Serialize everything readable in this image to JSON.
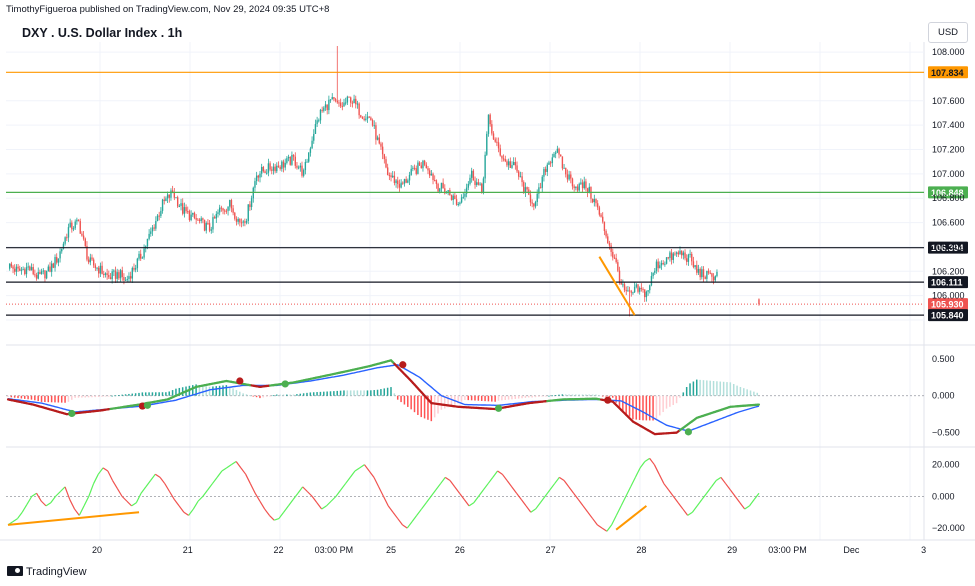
{
  "header": {
    "attribution": "TimothyFigueroa published on TradingView.com, Nov 29, 2024 09:35 UTC+8",
    "symbol_title": "DXY . U.S. Dollar Index . 1h",
    "currency": "USD",
    "footer": "TradingView"
  },
  "colors": {
    "up": "#26a69a",
    "down": "#ef5350",
    "orange": "#ff9800",
    "green_line": "#4caf50",
    "black_line": "#131722",
    "macd_blue": "#2962ff",
    "macd_green": "#4caf50",
    "macd_red": "#b71c1c",
    "rsi_green": "#5cf25c",
    "rsi_red": "#f0524f"
  },
  "chart_data": [
    {
      "type": "candlestick",
      "name": "price",
      "ylim": [
        105.8,
        108.05
      ],
      "y_ticks": [
        105.8,
        106.0,
        106.2,
        106.4,
        106.6,
        106.8,
        107.0,
        107.2,
        107.4,
        107.6,
        108.0
      ],
      "y_tick_labels": [
        "",
        "106.000",
        "106.200",
        "106.400",
        "106.600",
        "106.800",
        "107.000",
        "107.200",
        "107.400",
        "107.600",
        "108.000"
      ],
      "anchors": [
        [
          0,
          106.25
        ],
        [
          6,
          106.2
        ],
        [
          12,
          106.23
        ],
        [
          18,
          106.15
        ],
        [
          24,
          106.2
        ],
        [
          30,
          106.32
        ],
        [
          36,
          106.55
        ],
        [
          42,
          106.6
        ],
        [
          48,
          106.28
        ],
        [
          54,
          106.22
        ],
        [
          60,
          106.15
        ],
        [
          66,
          106.18
        ],
        [
          70,
          106.12
        ],
        [
          76,
          106.25
        ],
        [
          80,
          106.35
        ],
        [
          86,
          106.55
        ],
        [
          92,
          106.75
        ],
        [
          98,
          106.85
        ],
        [
          104,
          106.7
        ],
        [
          112,
          106.62
        ],
        [
          120,
          106.55
        ],
        [
          126,
          106.7
        ],
        [
          132,
          106.75
        ],
        [
          138,
          106.6
        ],
        [
          142,
          106.65
        ],
        [
          148,
          107.0
        ],
        [
          156,
          107.05
        ],
        [
          164,
          107.08
        ],
        [
          170,
          107.12
        ],
        [
          176,
          107.0
        ],
        [
          182,
          107.35
        ],
        [
          186,
          107.5
        ],
        [
          192,
          107.6
        ],
        [
          198,
          107.55
        ],
        [
          204,
          107.62
        ],
        [
          210,
          107.5
        ],
        [
          216,
          107.45
        ],
        [
          226,
          107.0
        ],
        [
          234,
          106.9
        ],
        [
          240,
          107.0
        ],
        [
          248,
          107.1
        ],
        [
          256,
          106.9
        ],
        [
          262,
          106.85
        ],
        [
          268,
          106.75
        ],
        [
          276,
          107.0
        ],
        [
          282,
          106.85
        ],
        [
          286,
          107.45
        ],
        [
          290,
          107.25
        ],
        [
          296,
          107.1
        ],
        [
          302,
          107.05
        ],
        [
          308,
          106.85
        ],
        [
          314,
          106.75
        ],
        [
          320,
          107.05
        ],
        [
          326,
          107.2
        ],
        [
          332,
          107.0
        ],
        [
          338,
          106.9
        ],
        [
          344,
          106.9
        ],
        [
          350,
          106.75
        ],
        [
          356,
          106.5
        ],
        [
          362,
          106.25
        ],
        [
          366,
          106.05
        ],
        [
          370,
          106.0
        ],
        [
          374,
          106.05
        ],
        [
          380,
          106.02
        ],
        [
          386,
          106.25
        ],
        [
          392,
          106.3
        ],
        [
          400,
          106.35
        ],
        [
          406,
          106.3
        ],
        [
          410,
          106.2
        ],
        [
          418,
          106.15
        ],
        [
          422,
          106.18
        ]
      ],
      "gap_after_index": 423,
      "tail": [
        [
          442,
          106.04
        ],
        [
          444,
          106.03
        ],
        [
          446,
          105.97
        ],
        [
          447,
          105.93
        ]
      ],
      "high_spike": [
        196,
        108.05
      ],
      "low_spike": [
        370,
        105.83
      ],
      "horizontal_levels": [
        {
          "value": 107.834,
          "label": "107.834",
          "color": "#ff9800",
          "label_bg": "#ff9800",
          "label_color": "#131722"
        },
        {
          "value": 106.848,
          "label": "106.848",
          "color": "#4caf50",
          "label_bg": "#4caf50",
          "label_color": "#ffffff"
        },
        {
          "value": 106.394,
          "label": "106.394",
          "color": "#131722",
          "label_bg": "#131722",
          "label_color": "#ffffff"
        },
        {
          "value": 106.111,
          "label": "106.111",
          "color": "#131722",
          "label_bg": "#131722",
          "label_color": "#ffffff"
        },
        {
          "value": 105.93,
          "label": "105.930",
          "color": "#ef5350",
          "label_bg": "#ef5350",
          "label_color": "#ffffff",
          "dotted": true
        },
        {
          "value": 105.84,
          "label": "105.840",
          "color": "#131722",
          "label_bg": "#131722",
          "label_color": "#ffffff"
        }
      ],
      "trendlines": [
        {
          "from": [
            352,
            106.32
          ],
          "to": [
            373,
            105.84
          ],
          "color": "#ff9800"
        }
      ]
    },
    {
      "type": "macd",
      "name": "macd",
      "ylim": [
        -0.6,
        0.62
      ],
      "y_ticks": [
        0.5,
        0.0,
        -0.5
      ],
      "y_tick_labels": [
        "0.500",
        "0.000",
        "−0.500"
      ],
      "macd_anchors": [
        [
          0,
          -0.05
        ],
        [
          15,
          -0.12
        ],
        [
          35,
          -0.25
        ],
        [
          55,
          -0.2
        ],
        [
          78,
          -0.12
        ],
        [
          95,
          -0.05
        ],
        [
          112,
          0.12
        ],
        [
          130,
          0.2
        ],
        [
          150,
          0.12
        ],
        [
          170,
          0.18
        ],
        [
          195,
          0.3
        ],
        [
          215,
          0.4
        ],
        [
          228,
          0.48
        ],
        [
          240,
          0.2
        ],
        [
          252,
          -0.1
        ],
        [
          268,
          -0.15
        ],
        [
          290,
          -0.18
        ],
        [
          310,
          -0.1
        ],
        [
          330,
          -0.05
        ],
        [
          350,
          -0.04
        ],
        [
          360,
          -0.08
        ],
        [
          372,
          -0.35
        ],
        [
          385,
          -0.52
        ],
        [
          398,
          -0.5
        ],
        [
          410,
          -0.3
        ],
        [
          430,
          -0.15
        ],
        [
          447,
          -0.12
        ]
      ],
      "signal_anchors": [
        [
          0,
          -0.04
        ],
        [
          20,
          -0.1
        ],
        [
          40,
          -0.22
        ],
        [
          60,
          -0.18
        ],
        [
          80,
          -0.14
        ],
        [
          100,
          -0.06
        ],
        [
          120,
          0.08
        ],
        [
          140,
          0.14
        ],
        [
          160,
          0.14
        ],
        [
          180,
          0.2
        ],
        [
          200,
          0.28
        ],
        [
          220,
          0.38
        ],
        [
          232,
          0.42
        ],
        [
          245,
          0.25
        ],
        [
          258,
          0.0
        ],
        [
          272,
          -0.12
        ],
        [
          292,
          -0.13
        ],
        [
          312,
          -0.08
        ],
        [
          332,
          -0.06
        ],
        [
          350,
          -0.05
        ],
        [
          365,
          -0.07
        ],
        [
          378,
          -0.22
        ],
        [
          392,
          -0.4
        ],
        [
          405,
          -0.48
        ],
        [
          420,
          -0.35
        ],
        [
          435,
          -0.22
        ],
        [
          447,
          -0.14
        ]
      ],
      "cross_dots": [
        [
          38,
          -0.24,
          "green"
        ],
        [
          80,
          -0.14,
          "red"
        ],
        [
          83,
          -0.13,
          "green"
        ],
        [
          138,
          0.2,
          "red"
        ],
        [
          165,
          0.16,
          "green"
        ],
        [
          235,
          0.42,
          "red"
        ],
        [
          292,
          -0.17,
          "green"
        ],
        [
          357,
          -0.06,
          "red"
        ],
        [
          405,
          -0.49,
          "green"
        ]
      ]
    },
    {
      "type": "oscillator",
      "name": "rsi-like",
      "ylim": [
        -25,
        28
      ],
      "y_ticks": [
        20,
        0,
        -20
      ],
      "y_tick_labels": [
        "20.000",
        "0.000",
        "−20.000"
      ],
      "values": [
        -18,
        -16,
        -14,
        -10,
        -5,
        0,
        2,
        -3,
        -6,
        -4,
        0,
        3,
        6,
        -2,
        -8,
        -12,
        -6,
        0,
        8,
        14,
        18,
        16,
        10,
        5,
        0,
        -3,
        -6,
        -4,
        2,
        6,
        10,
        14,
        12,
        8,
        3,
        -2,
        -6,
        -10,
        -12,
        -8,
        -3,
        0,
        4,
        8,
        12,
        16,
        18,
        20,
        22,
        18,
        14,
        8,
        2,
        -3,
        -8,
        -12,
        -15,
        -14,
        -10,
        -6,
        -2,
        2,
        6,
        3,
        0,
        -4,
        -8,
        -6,
        -3,
        0,
        4,
        8,
        12,
        16,
        18,
        20,
        16,
        12,
        6,
        0,
        -6,
        -10,
        -14,
        -18,
        -20,
        -16,
        -12,
        -8,
        -4,
        0,
        4,
        8,
        12,
        10,
        6,
        2,
        -2,
        -6,
        -4,
        0,
        4,
        8,
        12,
        16,
        14,
        10,
        6,
        2,
        -2,
        -6,
        -10,
        -8,
        -4,
        0,
        4,
        8,
        12,
        10,
        6,
        2,
        -2,
        -6,
        -10,
        -14,
        -18,
        -20,
        -22,
        -18,
        -12,
        -6,
        0,
        6,
        12,
        18,
        22,
        24,
        20,
        14,
        8,
        4,
        0,
        -4,
        -8,
        -12,
        -10,
        -6,
        -2,
        2,
        6,
        10,
        12,
        8,
        4,
        0,
        -4,
        -8,
        -6,
        -2,
        2
      ],
      "trendlines": [
        {
          "from": [
            0,
            -18
          ],
          "to": [
            78,
            -10
          ],
          "color": "#ff9800"
        },
        {
          "from": [
            362,
            -21
          ],
          "to": [
            380,
            -6
          ],
          "color": "#ff9800"
        }
      ]
    },
    {
      "type": "time_axis",
      "labels": [
        {
          "text": "20",
          "bar": 53
        },
        {
          "text": "21",
          "bar": 107
        },
        {
          "text": "22",
          "bar": 161
        },
        {
          "text": "03:00 PM",
          "bar": 194
        },
        {
          "text": "25",
          "bar": 228
        },
        {
          "text": "26",
          "bar": 269
        },
        {
          "text": "27",
          "bar": 323
        },
        {
          "text": "28",
          "bar": 377
        },
        {
          "text": "29",
          "bar": 431
        },
        {
          "text": "03:00 PM",
          "bar": 464
        },
        {
          "text": "Dec",
          "bar": 502
        },
        {
          "text": "3",
          "bar": 545
        }
      ]
    }
  ]
}
